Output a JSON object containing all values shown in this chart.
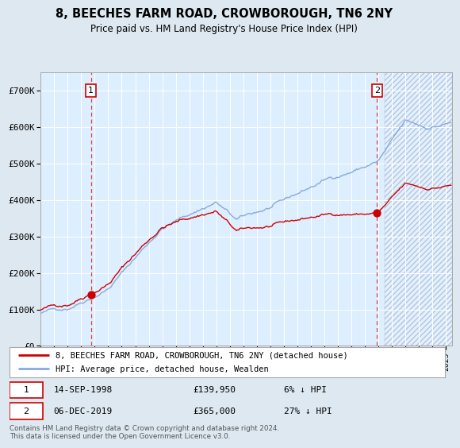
{
  "title": "8, BEECHES FARM ROAD, CROWBOROUGH, TN6 2NY",
  "subtitle": "Price paid vs. HM Land Registry's House Price Index (HPI)",
  "bg_color": "#dde8f0",
  "plot_bg_color": "#ddeeff",
  "hpi_color": "#88aadd",
  "price_color": "#cc0000",
  "marker_color": "#cc0000",
  "vline_color": "#dd4444",
  "purchase1_date_num": 1998.71,
  "purchase1_price": 139950,
  "purchase1_label": "1",
  "purchase1_text": "14-SEP-1998",
  "purchase1_hpi_pct": "6% ↓ HPI",
  "purchase2_date_num": 2019.92,
  "purchase2_price": 365000,
  "purchase2_label": "2",
  "purchase2_text": "06-DEC-2019",
  "purchase2_hpi_pct": "27% ↓ HPI",
  "xmin": 1995.0,
  "xmax": 2025.5,
  "ymin": 0,
  "ymax": 750000,
  "legend_line1": "8, BEECHES FARM ROAD, CROWBOROUGH, TN6 2NY (detached house)",
  "legend_line2": "HPI: Average price, detached house, Wealden",
  "footer": "Contains HM Land Registry data © Crown copyright and database right 2024.\nThis data is licensed under the Open Government Licence v3.0.",
  "yticks": [
    0,
    100000,
    200000,
    300000,
    400000,
    500000,
    600000,
    700000
  ],
  "ytick_labels": [
    "£0",
    "£100K",
    "£200K",
    "£300K",
    "£400K",
    "£500K",
    "£600K",
    "£700K"
  ]
}
